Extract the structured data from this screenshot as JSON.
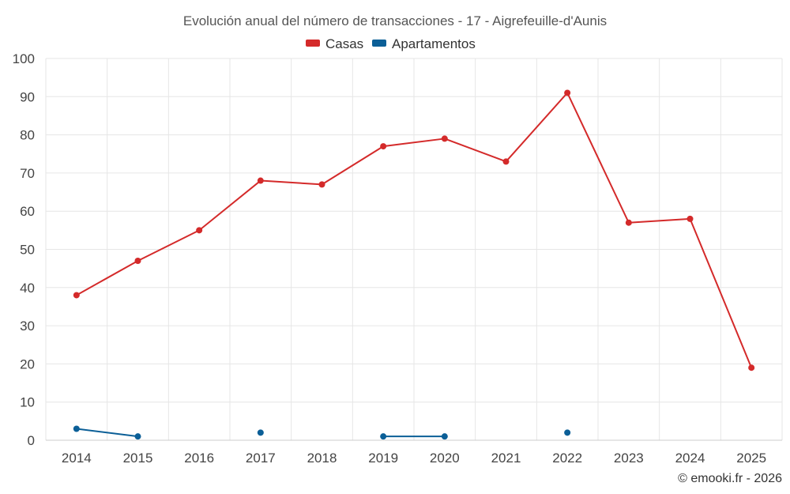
{
  "chart_data": {
    "type": "line",
    "title": "Evolución anual del número de transacciones - 17 - Aigrefeuille-d'Aunis",
    "categories": [
      "2014",
      "2015",
      "2016",
      "2017",
      "2018",
      "2019",
      "2020",
      "2021",
      "2022",
      "2023",
      "2024",
      "2025"
    ],
    "ylim": [
      0,
      100
    ],
    "yticks": [
      "0",
      "10",
      "20",
      "30",
      "40",
      "50",
      "60",
      "70",
      "80",
      "90",
      "100"
    ],
    "series": [
      {
        "name": "Casas",
        "color": "#d42a2a",
        "values": [
          38,
          47,
          55,
          68,
          67,
          77,
          79,
          73,
          91,
          57,
          58,
          19
        ]
      },
      {
        "name": "Apartamentos",
        "color": "#0b5f97",
        "values": [
          3,
          1,
          null,
          2,
          null,
          1,
          1,
          null,
          2,
          null,
          null,
          null
        ]
      }
    ],
    "legend_position": "top-center",
    "credit": "© emooki.fr - 2026"
  }
}
